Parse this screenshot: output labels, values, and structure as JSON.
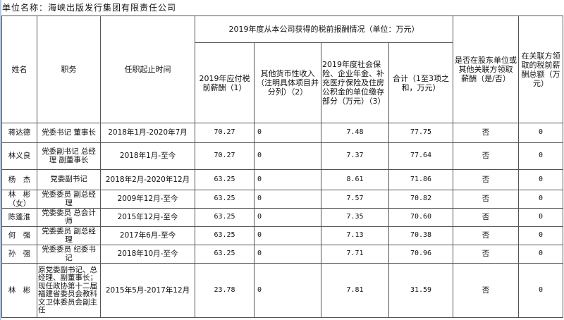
{
  "unit_label": "单位名称：海峡出版发行集团有限责任公司",
  "headers": {
    "name": "姓名",
    "position": "职务",
    "term": "任职起止时间",
    "group": "2019年度从本公司获得的税前报酬情况（单位：万元）",
    "salary": "2019年应付税前薪酬（1）",
    "other": "其他货币性收入（注明具体项目并分列）（2）",
    "insurance": "2019年度社会保险、企业年金、补充医疗保险及住房公积金的单位缴存部分（万元）（3）",
    "total": "合计（1至3项之和，万元）",
    "shareholder": "是否在股东单位或其他关联方领取 薪酬（是/否）",
    "related": "在关联方领取的税前薪酬总额（万元）"
  },
  "rows": [
    {
      "name": "蒋达德",
      "position": "党委书记 董事长",
      "term": "2018年1月-2020年7月",
      "salary": "70.27",
      "other": "0",
      "insurance": "7.48",
      "total": "77.75",
      "shareholder": "否",
      "related": "0"
    },
    {
      "name": "林义良",
      "position": "党委副书记 总经理 副董事长",
      "term": "2018年1月-至今",
      "salary": "70.27",
      "other": "0",
      "insurance": "7.37",
      "total": "77.64",
      "shareholder": "否",
      "related": "0"
    },
    {
      "name": "杨　杰",
      "position": "党委副书记",
      "term": "2018年2月-2020年12月",
      "salary": "63.25",
      "other": "0",
      "insurance": "8.61",
      "total": "71.86",
      "shareholder": "否",
      "related": "0"
    },
    {
      "name": "林　彬（女）",
      "position": "党委委员 副总经理",
      "term": "2009年12月-至今",
      "salary": "63.25",
      "other": "0",
      "insurance": "7.57",
      "total": "70.82",
      "shareholder": "否",
      "related": "0"
    },
    {
      "name": "陈蓬淮",
      "position": "党委委员 总会计师",
      "term": "2015年12月-至今",
      "salary": "63.25",
      "other": "0",
      "insurance": "7.35",
      "total": "70.60",
      "shareholder": "否",
      "related": "0"
    },
    {
      "name": "何　强",
      "position": "党委委员 副总经理",
      "term": "2017年6月-至今",
      "salary": "63.25",
      "other": "0",
      "insurance": "7.13",
      "total": "70.38",
      "shareholder": "否",
      "related": "0"
    },
    {
      "name": "孙　强",
      "position": "党委委员 纪委书记",
      "term": "2018年10月-至今",
      "salary": "63.25",
      "other": "0",
      "insurance": "7.71",
      "total": "70.96",
      "shareholder": "否",
      "related": "0"
    },
    {
      "name": "林　彬",
      "position": "原党委副书记、总经理、副董事长；现任政协第十二届福建省委员会教科文卫体委员会副主任",
      "term": "2015年5月-2017年12月",
      "salary": "23.78",
      "other": "0",
      "insurance": "7.81",
      "total": "31.59",
      "shareholder": "否",
      "related": "0"
    }
  ]
}
